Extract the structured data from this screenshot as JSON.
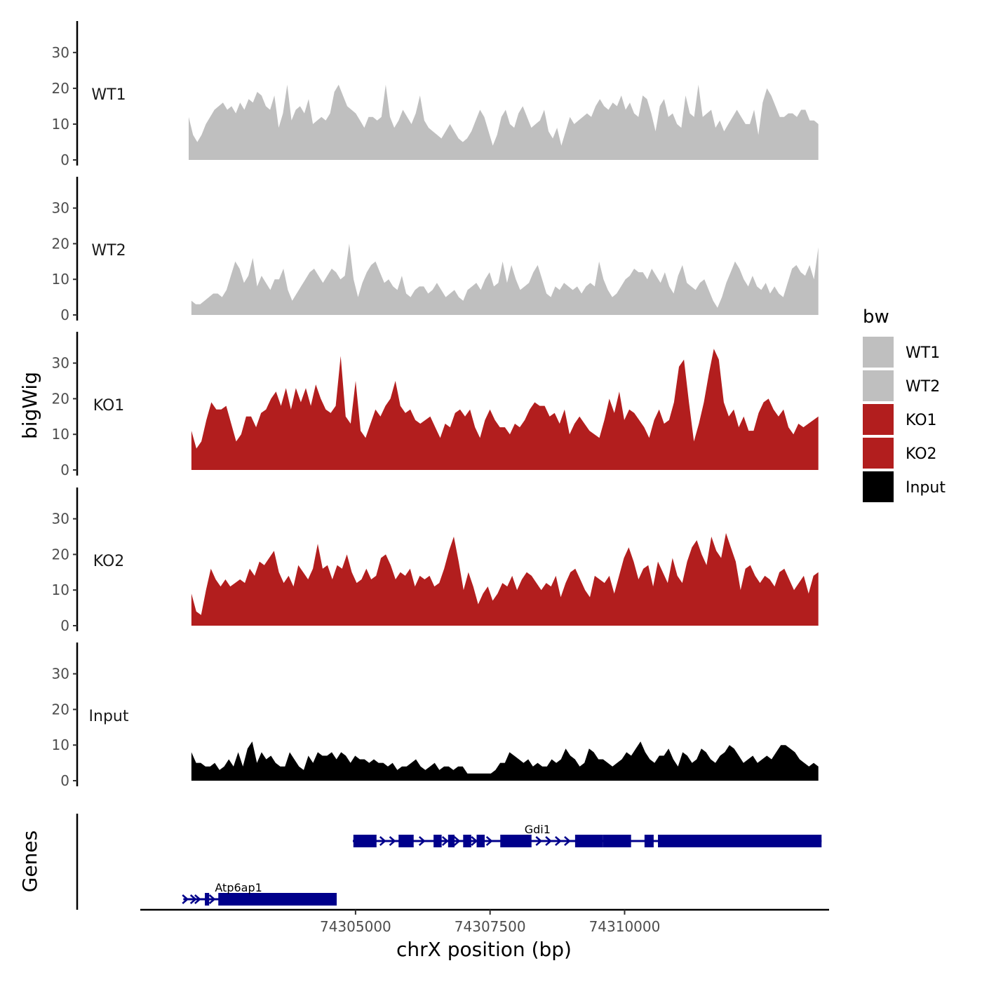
{
  "chart_data": {
    "type": "area",
    "xlabel": "chrX position (bp)",
    "ylabel": "bigWig",
    "genes_label": "Genes",
    "xlim": [
      74301000,
      74313800
    ],
    "ylim": [
      0,
      38
    ],
    "x_ticks": [
      74305000,
      74307500,
      74310000
    ],
    "x_tick_labels": [
      "74305000",
      "74307500",
      "74310000"
    ],
    "y_ticks": [
      0,
      10,
      20,
      30
    ],
    "y_tick_labels": [
      "0",
      "10",
      "20",
      "30"
    ],
    "legend": {
      "title": "bw",
      "entries": [
        {
          "label": "WT1",
          "color": "#bfbfbf"
        },
        {
          "label": "WT2",
          "color": "#bfbfbf"
        },
        {
          "label": "KO1",
          "color": "#b21e1e"
        },
        {
          "label": "KO2",
          "color": "#b21e1e"
        },
        {
          "label": "Input",
          "color": "#000000"
        }
      ]
    },
    "series": [
      {
        "name": "WT1",
        "color": "#bfbfbf",
        "x_start": 74301900,
        "x_end": 74313600,
        "values": [
          12,
          7,
          5,
          7,
          10,
          12,
          14,
          15,
          16,
          14,
          15,
          13,
          16,
          14,
          17,
          16,
          19,
          18,
          15,
          14,
          18,
          9,
          13,
          21,
          11,
          14,
          15,
          13,
          17,
          10,
          11,
          12,
          11,
          13,
          19,
          21,
          18,
          15,
          14,
          13,
          11,
          9,
          12,
          12,
          11,
          12,
          21,
          12,
          9,
          11,
          14,
          12,
          10,
          13,
          18,
          11,
          9,
          8,
          7,
          6,
          8,
          10,
          8,
          6,
          5,
          6,
          8,
          11,
          14,
          12,
          8,
          4,
          7,
          12,
          14,
          10,
          9,
          13,
          15,
          12,
          9,
          10,
          11,
          14,
          8,
          6,
          9,
          4,
          8,
          12,
          10,
          11,
          12,
          13,
          12,
          15,
          17,
          15,
          14,
          16,
          15,
          18,
          14,
          16,
          13,
          12,
          18,
          17,
          13,
          8,
          15,
          17,
          12,
          13,
          10,
          9,
          18,
          13,
          12,
          21,
          12,
          13,
          14,
          9,
          11,
          8,
          10,
          12,
          14,
          12,
          10,
          10,
          14,
          7,
          16,
          20,
          18,
          15,
          12,
          12,
          13,
          13,
          12,
          14,
          14,
          11,
          11,
          10
        ]
      },
      {
        "name": "WT2",
        "color": "#bfbfbf",
        "x_start": 74301950,
        "x_end": 74313600,
        "values": [
          4,
          3,
          3,
          4,
          5,
          6,
          6,
          5,
          7,
          11,
          15,
          13,
          9,
          11,
          16,
          8,
          11,
          9,
          7,
          10,
          10,
          13,
          7,
          4,
          6,
          8,
          10,
          12,
          13,
          11,
          9,
          11,
          13,
          12,
          10,
          11,
          20,
          10,
          5,
          9,
          12,
          14,
          15,
          12,
          9,
          10,
          8,
          7,
          11,
          6,
          5,
          7,
          8,
          8,
          6,
          7,
          9,
          7,
          5,
          6,
          7,
          5,
          4,
          7,
          8,
          9,
          7,
          10,
          12,
          8,
          9,
          15,
          9,
          14,
          10,
          7,
          8,
          9,
          12,
          14,
          10,
          6,
          5,
          8,
          7,
          9,
          8,
          7,
          8,
          6,
          8,
          9,
          8,
          15,
          10,
          7,
          5,
          6,
          8,
          10,
          11,
          13,
          12,
          12,
          10,
          13,
          11,
          9,
          12,
          8,
          6,
          11,
          14,
          9,
          8,
          7,
          9,
          10,
          7,
          4,
          2,
          5,
          9,
          12,
          15,
          13,
          10,
          8,
          11,
          8,
          7,
          9,
          6,
          8,
          6,
          5,
          9,
          13,
          14,
          12,
          11,
          14,
          10,
          19
        ]
      },
      {
        "name": "KO1",
        "color": "#b21e1e",
        "x_start": 74301950,
        "x_end": 74313600,
        "values": [
          11,
          6,
          8,
          14,
          19,
          17,
          17,
          18,
          13,
          8,
          10,
          15,
          15,
          12,
          16,
          17,
          20,
          22,
          18,
          23,
          17,
          23,
          19,
          23,
          18,
          24,
          20,
          17,
          16,
          18,
          32,
          15,
          13,
          25,
          11,
          9,
          13,
          17,
          15,
          18,
          20,
          25,
          18,
          16,
          17,
          14,
          13,
          14,
          15,
          12,
          9,
          13,
          12,
          16,
          17,
          15,
          17,
          12,
          9,
          14,
          17,
          14,
          12,
          12,
          10,
          13,
          12,
          14,
          17,
          19,
          18,
          18,
          15,
          16,
          13,
          17,
          10,
          13,
          15,
          13,
          11,
          10,
          9,
          14,
          20,
          16,
          22,
          14,
          17,
          16,
          14,
          12,
          9,
          14,
          17,
          13,
          14,
          19,
          29,
          31,
          19,
          8,
          13,
          19,
          27,
          34,
          31,
          19,
          15,
          17,
          12,
          15,
          11,
          11,
          16,
          19,
          20,
          17,
          15,
          17,
          12,
          10,
          13,
          12,
          13,
          14,
          15
        ]
      },
      {
        "name": "KO2",
        "color": "#b21e1e",
        "x_start": 74301950,
        "x_end": 74313600,
        "values": [
          9,
          4,
          3,
          10,
          16,
          13,
          11,
          13,
          11,
          12,
          13,
          12,
          16,
          14,
          18,
          17,
          19,
          21,
          15,
          12,
          14,
          11,
          17,
          15,
          13,
          16,
          23,
          16,
          17,
          13,
          17,
          16,
          20,
          15,
          12,
          13,
          16,
          13,
          14,
          19,
          20,
          17,
          13,
          15,
          14,
          16,
          11,
          14,
          13,
          14,
          11,
          12,
          16,
          21,
          25,
          18,
          10,
          15,
          11,
          6,
          9,
          11,
          7,
          9,
          12,
          11,
          14,
          10,
          13,
          15,
          14,
          12,
          10,
          12,
          11,
          14,
          8,
          12,
          15,
          16,
          13,
          10,
          8,
          14,
          13,
          12,
          14,
          9,
          14,
          19,
          22,
          18,
          13,
          16,
          17,
          11,
          18,
          15,
          12,
          19,
          14,
          12,
          18,
          22,
          24,
          20,
          17,
          25,
          21,
          19,
          26,
          22,
          18,
          10,
          16,
          17,
          14,
          12,
          14,
          13,
          11,
          15,
          16,
          13,
          10,
          12,
          14,
          9,
          14,
          15
        ]
      },
      {
        "name": "Input",
        "color": "#000000",
        "x_start": 74301950,
        "x_end": 74313600,
        "values": [
          8,
          5,
          5,
          4,
          4,
          5,
          3,
          4,
          6,
          4,
          8,
          4,
          9,
          11,
          5,
          8,
          6,
          7,
          5,
          4,
          4,
          8,
          6,
          4,
          3,
          7,
          5,
          8,
          7,
          7,
          8,
          6,
          8,
          7,
          5,
          7,
          6,
          6,
          5,
          6,
          5,
          5,
          4,
          5,
          3,
          4,
          4,
          5,
          6,
          4,
          3,
          4,
          5,
          3,
          4,
          4,
          3,
          4,
          4,
          2,
          2,
          2,
          2,
          2,
          2,
          3,
          5,
          5,
          8,
          7,
          6,
          5,
          6,
          4,
          5,
          4,
          4,
          6,
          5,
          6,
          9,
          7,
          6,
          4,
          5,
          9,
          8,
          6,
          6,
          5,
          4,
          5,
          6,
          8,
          7,
          9,
          11,
          8,
          6,
          5,
          7,
          7,
          9,
          6,
          4,
          8,
          7,
          5,
          6,
          9,
          8,
          6,
          5,
          7,
          8,
          10,
          9,
          7,
          5,
          6,
          7,
          5,
          6,
          7,
          6,
          8,
          10,
          10,
          9,
          8,
          6,
          5,
          4,
          5,
          4
        ]
      }
    ],
    "genes": [
      {
        "name": "Gdi1",
        "color": "#00008b",
        "start": 74304950,
        "end": 74313660,
        "exons": [
          [
            74304960,
            74305390
          ],
          [
            74305800,
            74306080
          ],
          [
            74306450,
            74306600
          ],
          [
            74306720,
            74306840
          ],
          [
            74307000,
            74307150
          ],
          [
            74307250,
            74307400
          ],
          [
            74307690,
            74308270
          ],
          [
            74309080,
            74309600
          ],
          [
            74309600,
            74310120
          ],
          [
            74310370,
            74310540
          ],
          [
            74310620,
            74313660
          ]
        ],
        "arrow_x": [
          74305050,
          74305520,
          74305700,
          74306250,
          74306680,
          74306900,
          74307220,
          74307500,
          74308420,
          74308600,
          74308780,
          74308950
        ]
      },
      {
        "name": "Atp6ap1",
        "color": "#00008b",
        "start": 74301800,
        "end": 74304650,
        "exons": [
          [
            74302200,
            74302280
          ],
          [
            74302450,
            74304650
          ]
        ],
        "arrow_x": [
          74301850,
          74302000,
          74302080,
          74302350
        ]
      }
    ]
  }
}
